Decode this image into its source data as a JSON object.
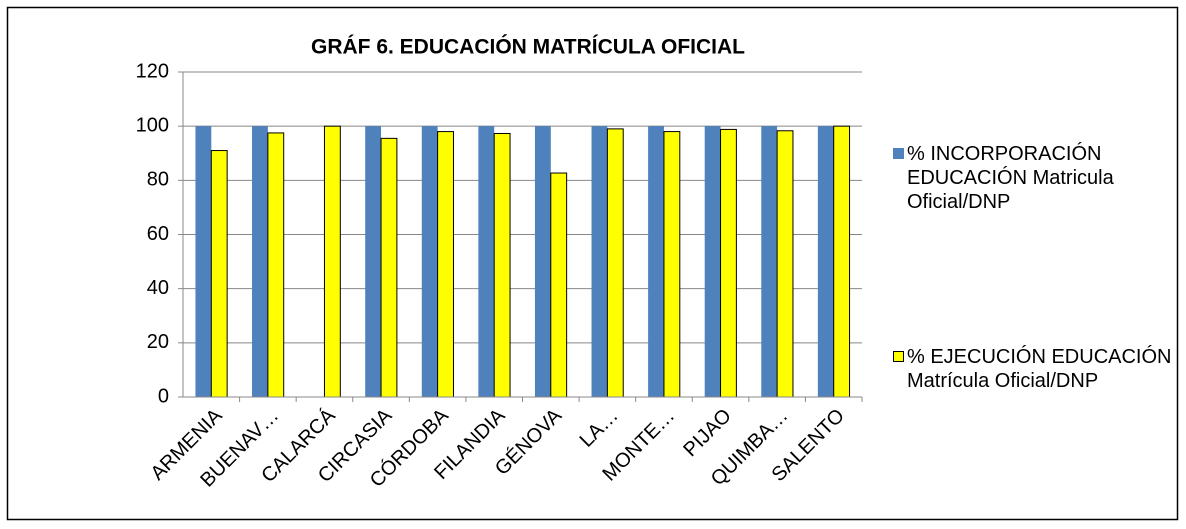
{
  "chart_data": {
    "type": "bar",
    "title": "GRÁF 6. EDUCACIÓN MATRÍCULA OFICIAL",
    "categories": [
      "ARMENIA",
      "BUENAV…",
      "CALARCÁ",
      "CIRCASIA",
      "CÓRDOBA",
      "FILANDIA",
      "GÉNOVA",
      "LA…",
      "MONTE…",
      "PIJAO",
      "QUIMBA…",
      "SALENTO"
    ],
    "series": [
      {
        "name": "% INCORPORACIÓN EDUCACIÓN Matricula Oficial/DNP",
        "color": "#4f81bd",
        "values": [
          100,
          100,
          null,
          100,
          100,
          100,
          100,
          100,
          100,
          100,
          100,
          100
        ]
      },
      {
        "name": "% EJECUCIÓN EDUCACIÓN Matrícula Oficial/DNP",
        "color": "#ffff00",
        "values": [
          91,
          97.5,
          100,
          95.5,
          98,
          97.3,
          82.7,
          99,
          98,
          98.8,
          98.3,
          100
        ]
      }
    ],
    "ylim": [
      0,
      120
    ],
    "yticks": [
      0,
      20,
      40,
      60,
      80,
      100,
      120
    ],
    "grid": true,
    "legend": "right"
  }
}
